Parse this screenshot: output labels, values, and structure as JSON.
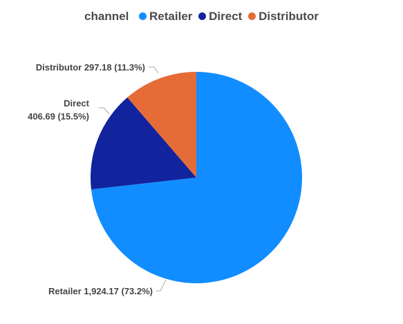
{
  "legend": {
    "title": "channel",
    "items": [
      {
        "label": "Retailer",
        "color": "#118DFF"
      },
      {
        "label": "Direct",
        "color": "#12239E"
      },
      {
        "label": "Distributor",
        "color": "#E66C37"
      }
    ]
  },
  "chart_data": {
    "type": "pie",
    "categories": [
      "Retailer",
      "Direct",
      "Distributor"
    ],
    "values": [
      1924.17,
      406.69,
      297.18
    ],
    "percentages": [
      "73.2%",
      "15.5%",
      "11.3%"
    ],
    "colors": [
      "#118DFF",
      "#12239E",
      "#E66C37"
    ],
    "legend_title": "channel",
    "legend_position": "top-center",
    "data_labels": {
      "retailer": "Retailer 1,924.17 (73.2%)",
      "direct_line1": "Direct",
      "direct_line2": "406.69 (15.5%)",
      "distributor": "Distributor 297.18 (11.3%)"
    }
  }
}
